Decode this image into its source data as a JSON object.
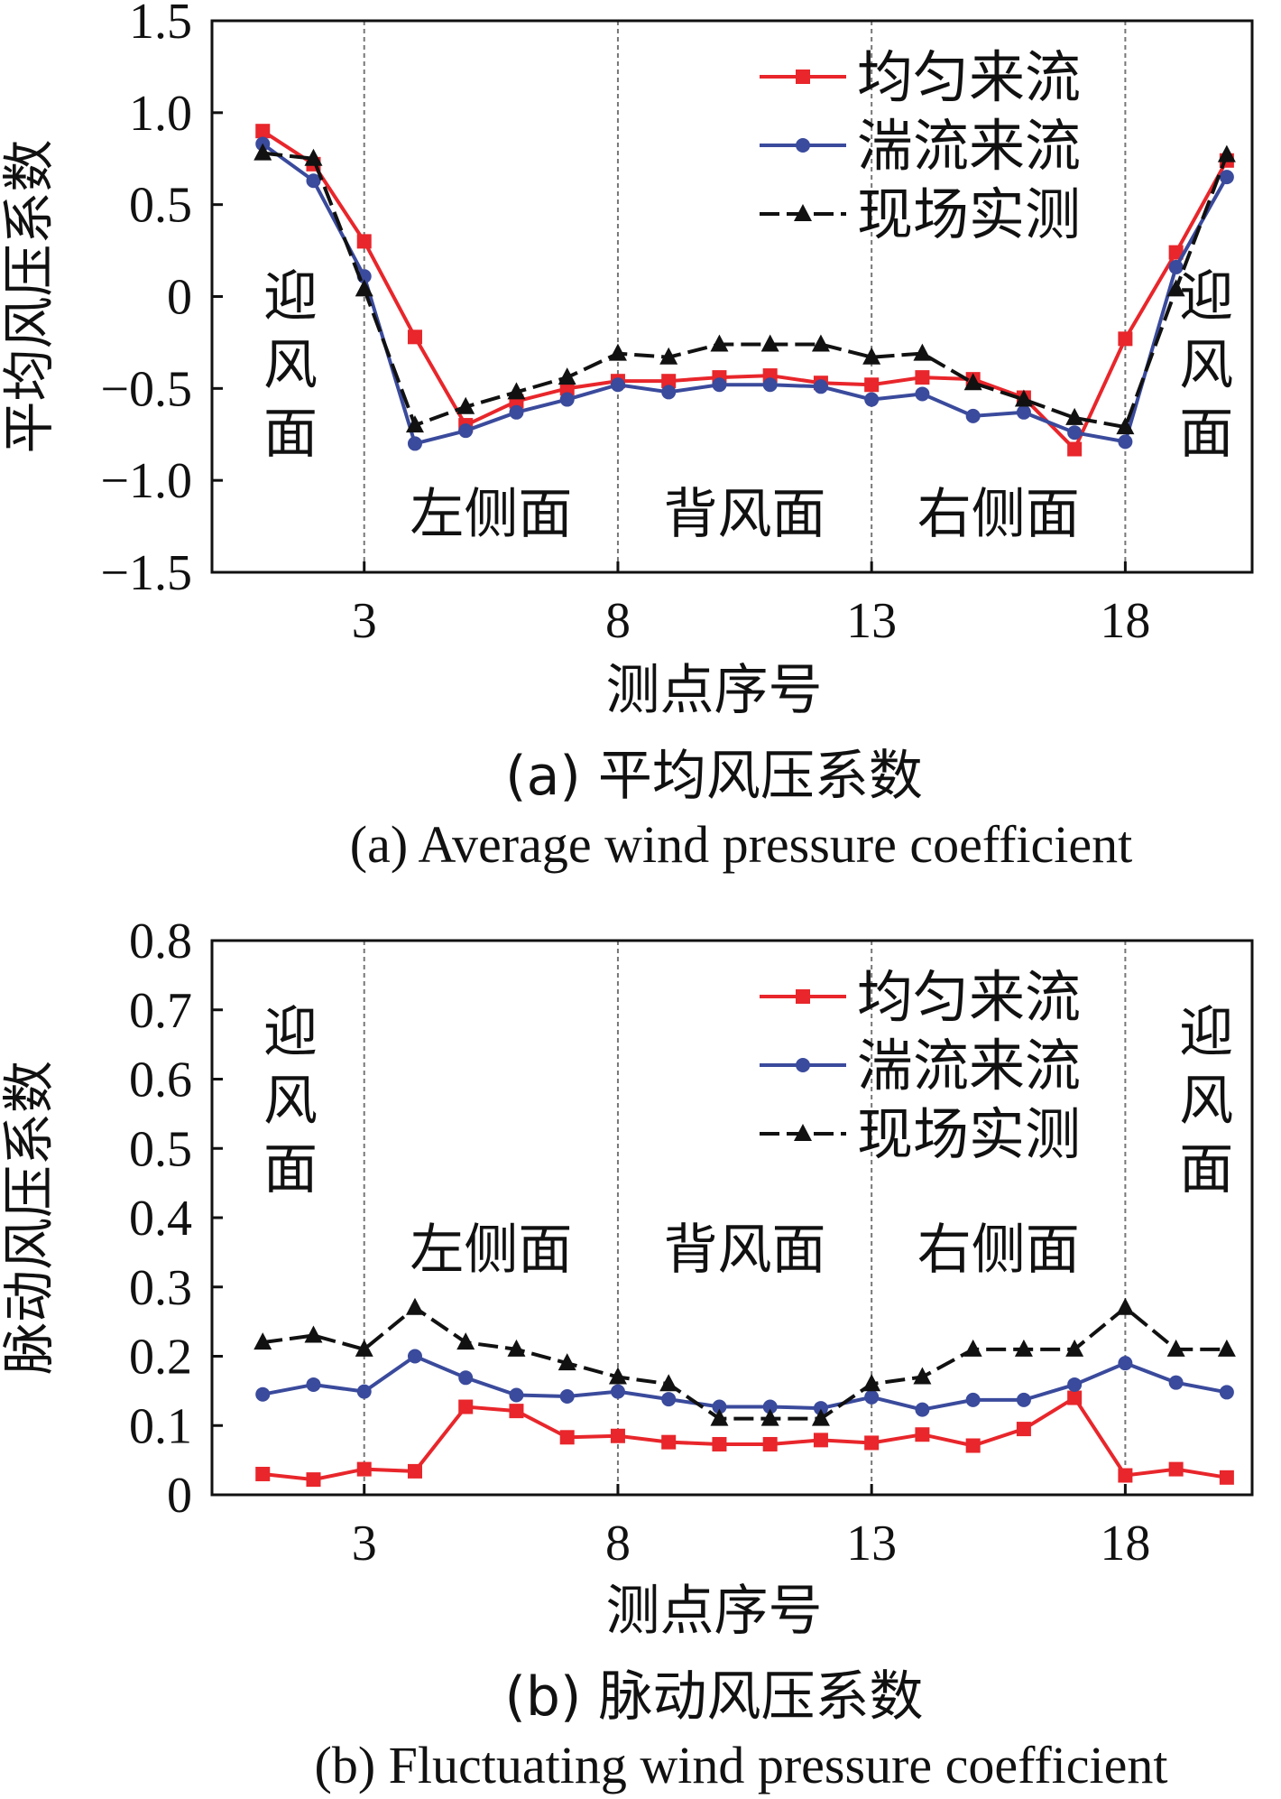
{
  "chart_data": [
    {
      "type": "line",
      "title": "(a)  平均风压系数",
      "subtitle": "(a)  Average wind pressure coefficient",
      "xlabel": "测点序号",
      "ylabel": "平均风压系数",
      "xlim": [
        0,
        20.5
      ],
      "ylim": [
        -1.5,
        1.5
      ],
      "xticks": [
        3,
        8,
        13,
        18
      ],
      "yticks": [
        -1.5,
        -1.0,
        -0.5,
        0,
        0.5,
        1.0,
        1.5
      ],
      "ytick_labels": [
        "−1.5",
        "−1.0",
        "−0.5",
        "0",
        "0.5",
        "1.0",
        "1.5"
      ],
      "legend_position": "top-right",
      "regions": [
        "迎风面",
        "左侧面",
        "背风面",
        "右侧面",
        "迎风面"
      ],
      "x": [
        1,
        2,
        3,
        4,
        5,
        6,
        7,
        8,
        9,
        10,
        11,
        12,
        13,
        14,
        15,
        16,
        17,
        18,
        19,
        20
      ],
      "series": [
        {
          "name": "均匀来流",
          "color": "#e8262b",
          "marker": "square",
          "values": [
            0.9,
            0.72,
            0.3,
            -0.22,
            -0.7,
            -0.57,
            -0.5,
            -0.46,
            -0.46,
            -0.44,
            -0.43,
            -0.47,
            -0.48,
            -0.44,
            -0.45,
            -0.55,
            -0.83,
            -0.23,
            0.24,
            0.74
          ]
        },
        {
          "name": "湍流来流",
          "color": "#3a4a9c",
          "marker": "circle",
          "values": [
            0.83,
            0.63,
            0.11,
            -0.8,
            -0.73,
            -0.63,
            -0.56,
            -0.48,
            -0.52,
            -0.48,
            -0.48,
            -0.49,
            -0.56,
            -0.53,
            -0.65,
            -0.63,
            -0.74,
            -0.79,
            0.16,
            0.65
          ]
        },
        {
          "name": "现场实测",
          "color": "#111111",
          "marker": "triangle",
          "dashed": true,
          "values": [
            0.78,
            0.75,
            0.04,
            -0.7,
            -0.6,
            -0.52,
            -0.44,
            -0.31,
            -0.33,
            -0.26,
            -0.26,
            -0.26,
            -0.33,
            -0.31,
            -0.47,
            -0.56,
            -0.66,
            -0.71,
            0.04,
            0.77
          ]
        }
      ]
    },
    {
      "type": "line",
      "title": "(b)  脉动风压系数",
      "subtitle": "(b)  Fluctuating wind pressure coefficient",
      "xlabel": "测点序号",
      "ylabel": "脉动风压系数",
      "xlim": [
        0,
        20.5
      ],
      "ylim": [
        0,
        0.8
      ],
      "xticks": [
        3,
        8,
        13,
        18
      ],
      "yticks": [
        0,
        0.1,
        0.2,
        0.3,
        0.4,
        0.5,
        0.6,
        0.7,
        0.8
      ],
      "ytick_labels": [
        "0",
        "0.1",
        "0.2",
        "0.3",
        "0.4",
        "0.5",
        "0.6",
        "0.7",
        "0.8"
      ],
      "legend_position": "top-right",
      "regions": [
        "迎风面",
        "左侧面",
        "背风面",
        "右侧面",
        "迎风面"
      ],
      "x": [
        1,
        2,
        3,
        4,
        5,
        6,
        7,
        8,
        9,
        10,
        11,
        12,
        13,
        14,
        15,
        16,
        17,
        18,
        19,
        20
      ],
      "series": [
        {
          "name": "均匀来流",
          "color": "#e8262b",
          "marker": "square",
          "values": [
            0.03,
            0.022,
            0.037,
            0.034,
            0.127,
            0.121,
            0.083,
            0.085,
            0.076,
            0.073,
            0.073,
            0.079,
            0.075,
            0.087,
            0.071,
            0.095,
            0.14,
            0.028,
            0.037,
            0.025
          ]
        },
        {
          "name": "湍流来流",
          "color": "#3a4a9c",
          "marker": "circle",
          "values": [
            0.145,
            0.159,
            0.149,
            0.2,
            0.169,
            0.144,
            0.142,
            0.149,
            0.138,
            0.127,
            0.127,
            0.125,
            0.141,
            0.123,
            0.137,
            0.137,
            0.159,
            0.19,
            0.162,
            0.148
          ]
        },
        {
          "name": "现场实测",
          "color": "#111111",
          "marker": "triangle",
          "dashed": true,
          "values": [
            0.22,
            0.23,
            0.21,
            0.27,
            0.22,
            0.21,
            0.19,
            0.17,
            0.16,
            0.11,
            0.11,
            0.11,
            0.16,
            0.17,
            0.21,
            0.21,
            0.21,
            0.27,
            0.21,
            0.21
          ]
        }
      ]
    }
  ]
}
